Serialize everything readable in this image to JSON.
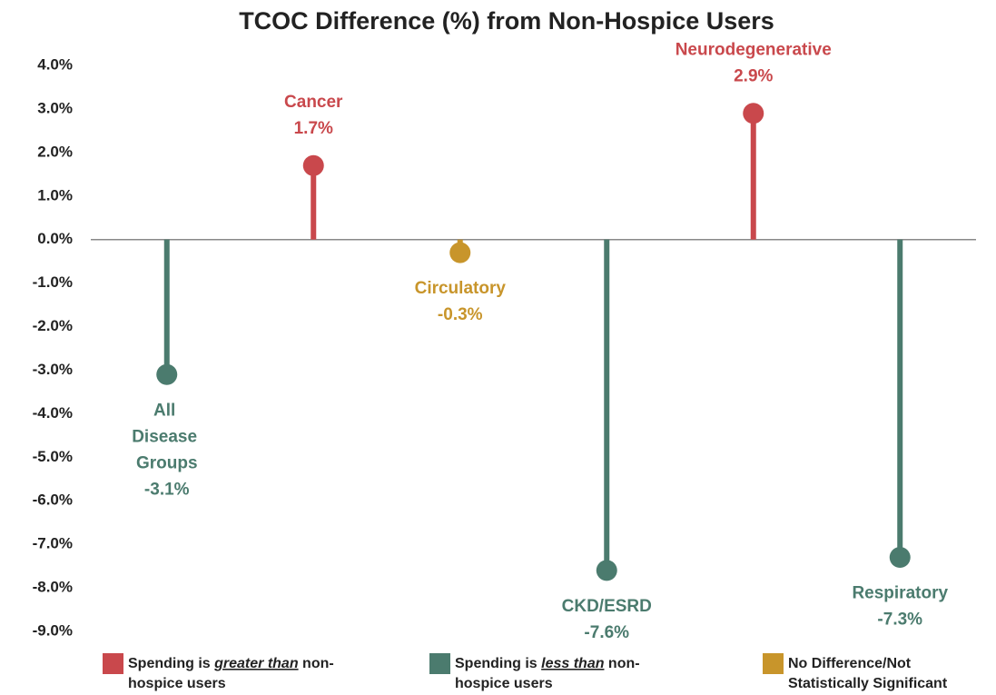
{
  "chart_data": {
    "type": "lollipop",
    "title": "TCOC Difference (%) from Non-Hospice Users",
    "categories": [
      "All Disease Groups",
      "Cancer",
      "Circulatory",
      "CKD/ESRD",
      "Neurodegenerative",
      "Respiratory"
    ],
    "values": [
      -3.1,
      1.7,
      -0.3,
      -7.6,
      2.9,
      -7.3
    ],
    "value_labels": [
      "-3.1%",
      "1.7%",
      "-0.3%",
      "-7.6%",
      "2.9%",
      "-7.3%"
    ],
    "colors": [
      "#4b7b6e",
      "#c9484c",
      "#c8952b",
      "#4b7b6e",
      "#c9484c",
      "#4b7b6e"
    ],
    "ylim": [
      -9,
      4
    ],
    "yticks": [
      {
        "value": 4,
        "label": "4.0%"
      },
      {
        "value": 3,
        "label": "3.0%"
      },
      {
        "value": 2,
        "label": "2.0%"
      },
      {
        "value": 1,
        "label": "1.0%"
      },
      {
        "value": 0,
        "label": "0.0%"
      },
      {
        "value": -1,
        "label": "-1.0%"
      },
      {
        "value": -2,
        "label": "-2.0%"
      },
      {
        "value": -3,
        "label": "-3.0%"
      },
      {
        "value": -4,
        "label": "-4.0%"
      },
      {
        "value": -5,
        "label": "-5.0%"
      },
      {
        "value": -6,
        "label": "-6.0%"
      },
      {
        "value": -7,
        "label": "-7.0%"
      },
      {
        "value": -8,
        "label": "-8.0%"
      },
      {
        "value": -9,
        "label": "-9.0%"
      }
    ],
    "grid": false,
    "legend": [
      {
        "color": "#c9484c",
        "lines": [
          [
            {
              "text": "Spending is "
            },
            {
              "text": "greater than",
              "emphasis": true
            },
            {
              "text": " non-"
            }
          ],
          [
            {
              "text": "hospice users"
            }
          ]
        ]
      },
      {
        "color": "#4b7b6e",
        "lines": [
          [
            {
              "text": "Spending is "
            },
            {
              "text": "less than",
              "emphasis": true
            },
            {
              "text": " non-"
            }
          ],
          [
            {
              "text": "hospice users"
            }
          ]
        ]
      },
      {
        "color": "#c8952b",
        "lines": [
          [
            {
              "text": "No Difference/Not"
            }
          ],
          [
            {
              "text": "Statistically Significant"
            }
          ]
        ]
      }
    ]
  }
}
